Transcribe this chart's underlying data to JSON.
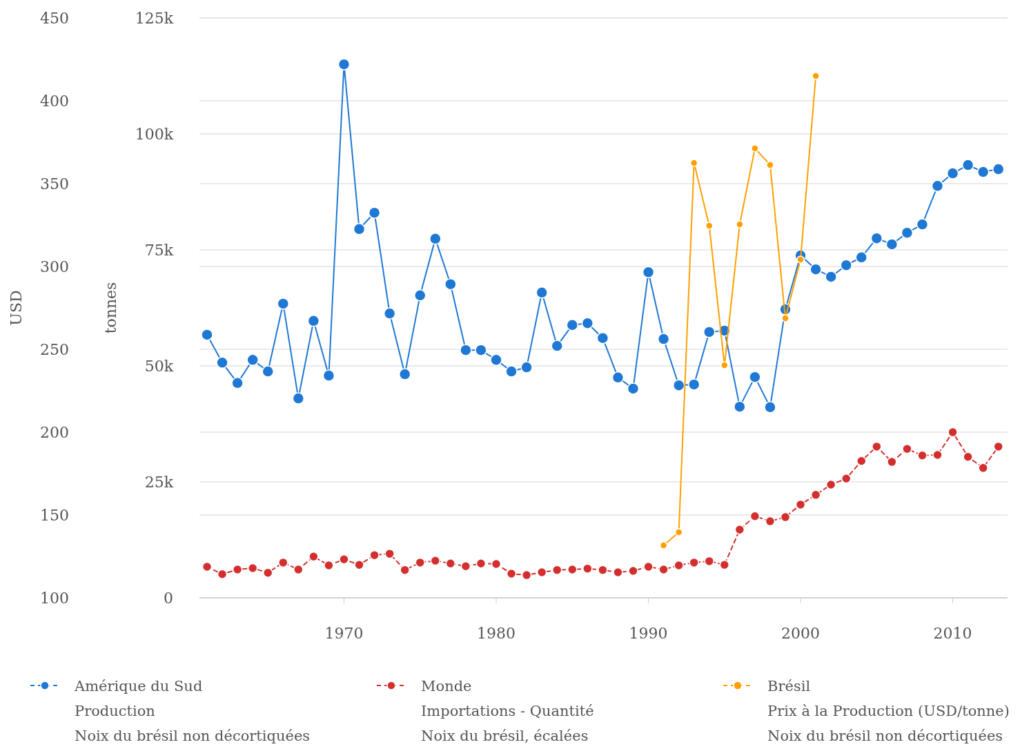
{
  "chart_data": {
    "type": "line",
    "ylabel": "tonnes",
    "y2label": "USD",
    "xlim": [
      1960.5,
      2013.6
    ],
    "xticks": [
      1970,
      1980,
      1990,
      2000,
      2010
    ],
    "ylim": [
      0,
      125000
    ],
    "yticks": [
      0,
      {
        "value": 25000,
        "label": "25k"
      },
      {
        "value": 50000,
        "label": "50k"
      },
      {
        "value": 75000,
        "label": "75k"
      },
      {
        "value": 100000,
        "label": "100k"
      },
      {
        "value": 125000,
        "label": "125k"
      }
    ],
    "y2lim": [
      100,
      450
    ],
    "y2ticks": [
      100,
      150,
      200,
      250,
      300,
      350,
      400,
      450
    ],
    "grid": "y",
    "legend": "bottom",
    "marker": "circle",
    "x": [
      1961,
      1962,
      1963,
      1964,
      1965,
      1966,
      1967,
      1968,
      1969,
      1970,
      1971,
      1972,
      1973,
      1974,
      1975,
      1976,
      1977,
      1978,
      1979,
      1980,
      1981,
      1982,
      1983,
      1984,
      1985,
      1986,
      1987,
      1988,
      1989,
      1990,
      1991,
      1992,
      1993,
      1994,
      1995,
      1996,
      1997,
      1998,
      1999,
      2000,
      2001,
      2002,
      2003,
      2004,
      2005,
      2006,
      2007,
      2008,
      2009,
      2010,
      2011,
      2012,
      2013
    ],
    "series": [
      {
        "name": "Amérique du Sud\nProduction\nNoix du brésil non décortiquées",
        "color": "#1f78d4",
        "line_style": "solid",
        "values": [
          56700,
          50700,
          46300,
          51300,
          48800,
          63400,
          43000,
          59700,
          47900,
          115000,
          79500,
          83000,
          61300,
          48200,
          65200,
          77400,
          67600,
          53400,
          53400,
          51300,
          48800,
          49700,
          65800,
          54300,
          58800,
          59200,
          56000,
          47500,
          45100,
          70200,
          55800,
          45800,
          46000,
          57300,
          57600,
          41200,
          47600,
          41100,
          62200,
          73800,
          70800,
          69200,
          71700,
          73400,
          77500,
          76200,
          78700,
          80500,
          88800,
          91500,
          93300,
          91800,
          92400
        ]
      },
      {
        "name": "Monde\nImportations - Quantité\nNoix du brésil, écalées",
        "color": "#d32f2f",
        "line_style": "dashed",
        "values": [
          6700,
          5100,
          6100,
          6400,
          5400,
          7600,
          6100,
          8900,
          7000,
          8300,
          7100,
          9200,
          9500,
          6000,
          7600,
          8000,
          7400,
          6800,
          7400,
          7300,
          5200,
          4900,
          5500,
          6000,
          6100,
          6300,
          6000,
          5500,
          5800,
          6700,
          6100,
          7000,
          7600,
          7900,
          7100,
          14700,
          17600,
          16500,
          17400,
          20100,
          22200,
          24400,
          25700,
          29500,
          32600,
          29300,
          32100,
          30700,
          30800,
          35700,
          30400,
          28000,
          32600
        ]
      },
      {
        "name": "Brésil\nPrix à la Production (USD/tonne)\nNoix du brésil non décortiquées",
        "color": "#ffa000",
        "line_style": "solid",
        "axis": "y2",
        "x": [
          1991,
          1992,
          1993,
          1994,
          1995,
          1996,
          1997,
          1998,
          1999,
          2000,
          2001
        ],
        "values": [
          131.7,
          139.6,
          362.5,
          324.6,
          240.4,
          325.4,
          371.3,
          361.3,
          268.8,
          304.2,
          415.0
        ]
      }
    ]
  }
}
